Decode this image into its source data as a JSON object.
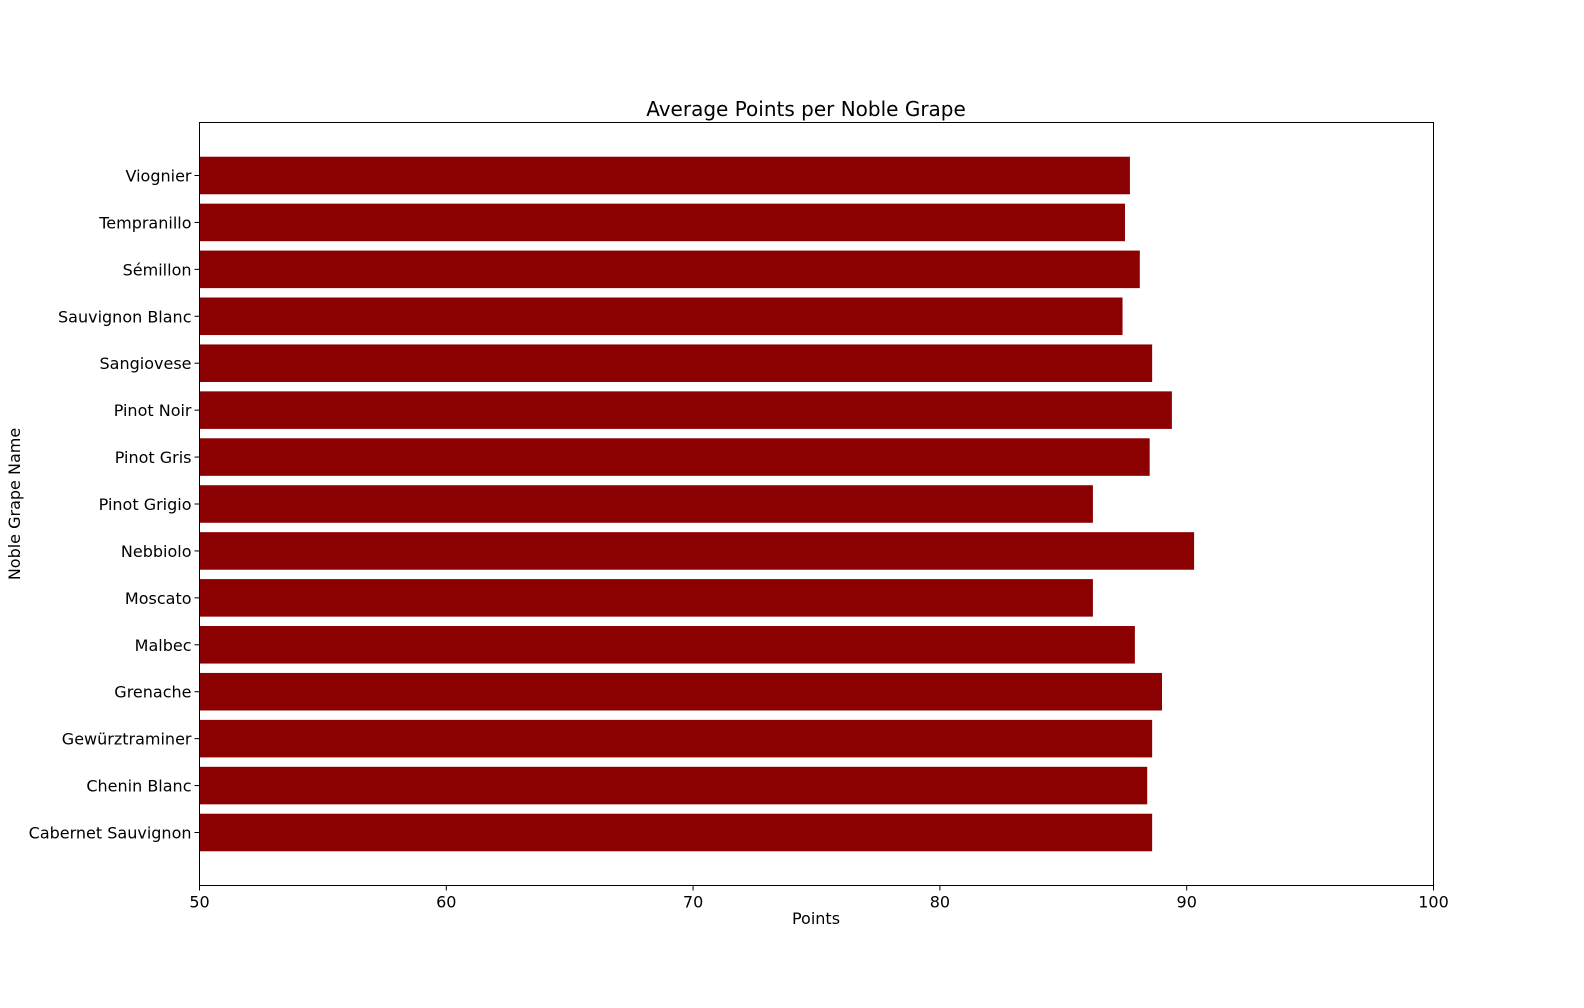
{
  "chart_data": {
    "type": "bar",
    "orientation": "horizontal",
    "title": "Average Points per Noble Grape",
    "xlabel": "Points",
    "ylabel": "Noble Grape Name",
    "xlim": [
      50,
      100
    ],
    "xticks": [
      50,
      60,
      70,
      80,
      90,
      100
    ],
    "grid": false,
    "bar_color": "#8b0000",
    "categories": [
      "Cabernet Sauvignon",
      "Chenin Blanc",
      "Gewürztraminer",
      "Grenache",
      "Malbec",
      "Moscato",
      "Nebbiolo",
      "Pinot Grigio",
      "Pinot Gris",
      "Pinot Noir",
      "Sangiovese",
      "Sauvignon Blanc",
      "Sémillon",
      "Tempranillo",
      "Viognier"
    ],
    "values": [
      88.6,
      88.4,
      88.6,
      89.0,
      87.9,
      86.2,
      90.3,
      86.2,
      88.5,
      89.4,
      88.6,
      87.4,
      88.1,
      87.5,
      87.7
    ]
  }
}
